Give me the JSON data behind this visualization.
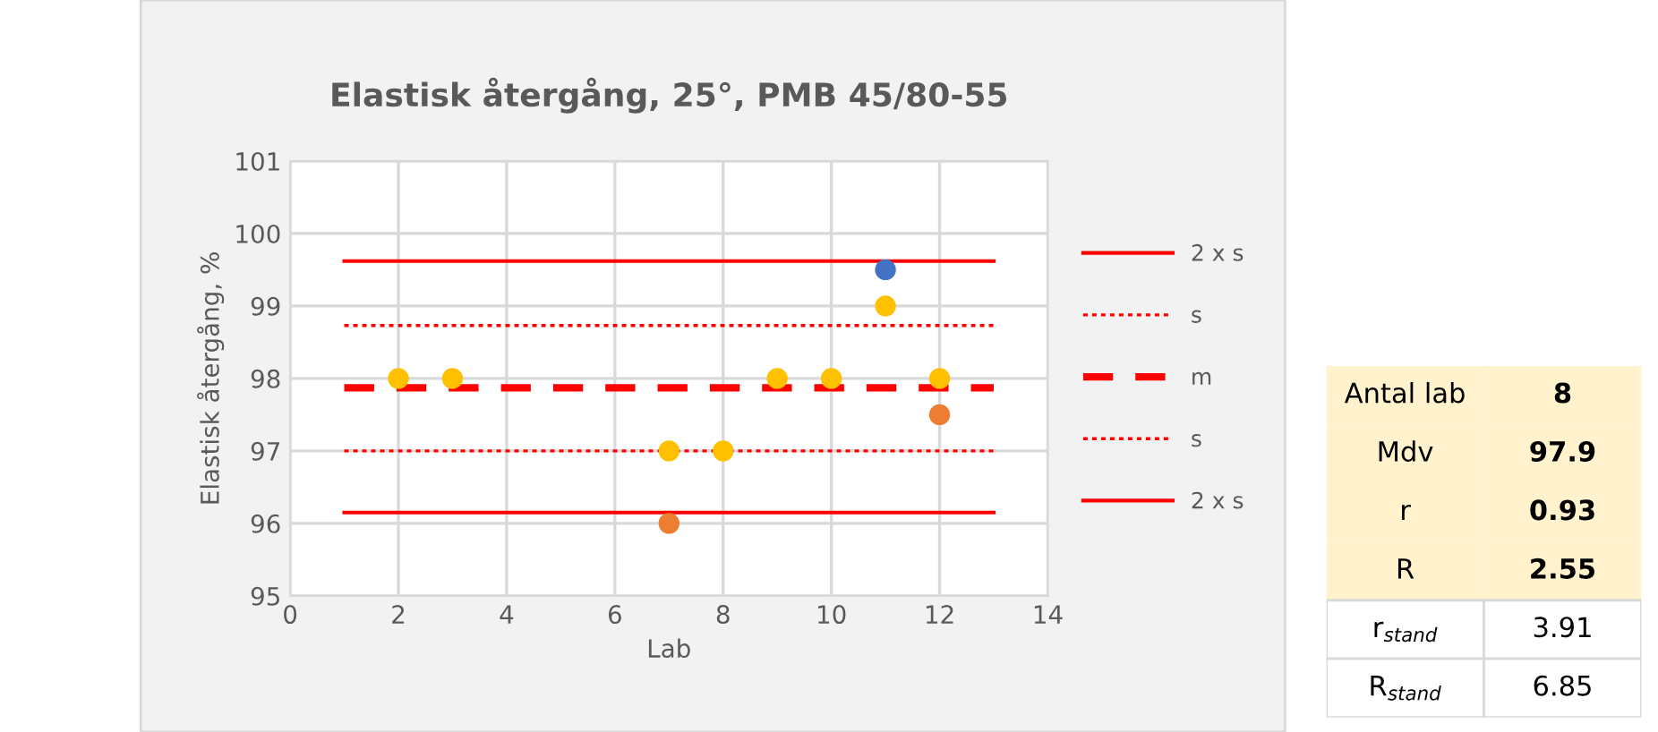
{
  "chart_data": [
    {
      "type": "scatter",
      "title": "Elastisk återgång, 25°, PMB 45/80-55",
      "xlabel": "Lab",
      "ylabel": "Elastisk återgång, %",
      "xlim": [
        0,
        14
      ],
      "xticks": [
        0,
        2,
        4,
        6,
        8,
        10,
        12,
        14
      ],
      "ylim": [
        95,
        101
      ],
      "yticks": [
        95,
        96,
        97,
        98,
        99,
        100,
        101
      ],
      "grid": true,
      "legend": "right",
      "marker": "circle",
      "series": [
        {
          "type": "line",
          "name": "2 x s",
          "color": "#ff0000",
          "line_style": "solid",
          "marker": "none",
          "x": [
            1,
            13
          ],
          "values": [
            99.62,
            99.62
          ]
        },
        {
          "type": "line",
          "name": "s",
          "color": "#ff0000",
          "line_style": "dotted",
          "marker": "none",
          "x": [
            1,
            13
          ],
          "values": [
            98.73,
            98.73
          ]
        },
        {
          "type": "line",
          "name": "m",
          "color": "#ff0000",
          "line_style": "dashed",
          "marker": "none",
          "x": [
            1,
            13
          ],
          "values": [
            97.87,
            97.87
          ]
        },
        {
          "type": "line",
          "name": "s",
          "color": "#ff0000",
          "line_style": "dotted",
          "marker": "none",
          "x": [
            1,
            13
          ],
          "values": [
            97.0,
            97.0
          ]
        },
        {
          "type": "line",
          "name": "2 x s",
          "color": "#ff0000",
          "line_style": "solid",
          "marker": "none",
          "x": [
            1,
            13
          ],
          "values": [
            96.15,
            96.15
          ]
        },
        {
          "type": "scatter",
          "color": "#ffc000",
          "x": [
            2,
            3,
            7,
            8,
            9,
            10,
            11,
            12
          ],
          "values": [
            98,
            98,
            97,
            97,
            98,
            98,
            99,
            98
          ]
        },
        {
          "type": "scatter",
          "color": "#ed7d31",
          "x": [
            7,
            12
          ],
          "values": [
            96,
            97.5
          ]
        },
        {
          "type": "scatter",
          "color": "#4472c4",
          "x": [
            11
          ],
          "values": [
            99.5
          ]
        }
      ]
    },
    {
      "type": "other",
      "annotations": [
        "Antal lab",
        "8",
        "Mdv",
        "97.9",
        "r",
        "0.93",
        "R",
        "2.55",
        "r$_{stand}$",
        "3.91",
        "R$_{stand}$",
        "6.85"
      ]
    }
  ]
}
